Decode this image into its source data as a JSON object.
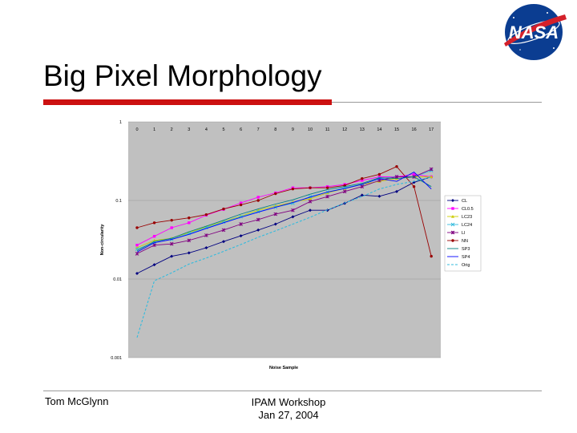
{
  "slide": {
    "title": "Big Pixel Morphology",
    "footer_left": "Tom McGlynn",
    "footer_center_line1": "IPAM Workshop",
    "footer_center_line2": "Jan 27, 2004",
    "logo_text": "NASA"
  },
  "chart_data": {
    "type": "line",
    "xlabel": "Noise Sample",
    "ylabel": "Non-circularity",
    "yscale": "log",
    "ylim": [
      0.001,
      1
    ],
    "yticks": [
      {
        "value": 1,
        "label": "1"
      },
      {
        "value": 0.1,
        "label": "0.1"
      },
      {
        "value": 0.01,
        "label": "0.01"
      },
      {
        "value": 0.001,
        "label": "0.001"
      }
    ],
    "categories": [
      "0",
      "1",
      "2",
      "3",
      "4",
      "5",
      "6",
      "7",
      "8",
      "9",
      "10",
      "11",
      "12",
      "13",
      "14",
      "15",
      "16",
      "17"
    ],
    "legend_position": "right",
    "series": [
      {
        "name": "CL",
        "color": "#000080",
        "marker": "diamond",
        "dash": false,
        "values": [
          0.0118,
          0.0152,
          0.0195,
          0.0215,
          0.025,
          0.03,
          0.0355,
          0.042,
          0.05,
          0.062,
          0.075,
          0.075,
          0.092,
          0.117,
          0.113,
          0.13,
          0.17,
          0.2
        ]
      },
      {
        "name": "CL0.5",
        "color": "#ff00ff",
        "marker": "square",
        "dash": false,
        "values": [
          0.027,
          0.035,
          0.045,
          0.052,
          0.065,
          0.077,
          0.093,
          0.11,
          0.125,
          0.145,
          0.145,
          0.15,
          0.16,
          0.18,
          0.2,
          0.2,
          0.215,
          0.2
        ]
      },
      {
        "name": "LC23",
        "color": "#cccc00",
        "marker": "triangle",
        "dash": false,
        "values": [
          0.025,
          0.031,
          0.033,
          0.039,
          0.046,
          0.054,
          0.063,
          0.075,
          0.085,
          0.095,
          0.105,
          0.125,
          0.142,
          0.16,
          0.175,
          0.19,
          0.2,
          0.2
        ]
      },
      {
        "name": "LC24",
        "color": "#33bbdd",
        "marker": "x",
        "dash": false,
        "values": [
          0.024,
          0.029,
          0.032,
          0.038,
          0.045,
          0.053,
          0.062,
          0.072,
          0.082,
          0.092,
          0.112,
          0.128,
          0.145,
          0.16,
          0.19,
          0.2,
          0.2,
          0.24
        ]
      },
      {
        "name": "LI",
        "color": "#800080",
        "marker": "star",
        "dash": false,
        "values": [
          0.021,
          0.027,
          0.028,
          0.031,
          0.036,
          0.042,
          0.05,
          0.057,
          0.067,
          0.075,
          0.097,
          0.112,
          0.13,
          0.15,
          0.18,
          0.2,
          0.2,
          0.25
        ]
      },
      {
        "name": "NN",
        "color": "#990000",
        "marker": "circle",
        "dash": false,
        "values": [
          0.045,
          0.052,
          0.056,
          0.06,
          0.066,
          0.078,
          0.088,
          0.1,
          0.122,
          0.14,
          0.145,
          0.145,
          0.155,
          0.19,
          0.215,
          0.27,
          0.15,
          0.0195
        ]
      },
      {
        "name": "SP3",
        "color": "#008080",
        "marker": "none",
        "dash": false,
        "values": [
          0.023,
          0.03,
          0.033,
          0.04,
          0.047,
          0.056,
          0.067,
          0.078,
          0.09,
          0.102,
          0.12,
          0.138,
          0.15,
          0.165,
          0.195,
          0.19,
          0.2,
          0.15
        ]
      },
      {
        "name": "SP4",
        "color": "#0000ff",
        "marker": "none",
        "dash": false,
        "values": [
          0.022,
          0.029,
          0.032,
          0.037,
          0.044,
          0.052,
          0.061,
          0.071,
          0.082,
          0.094,
          0.11,
          0.128,
          0.142,
          0.16,
          0.19,
          0.175,
          0.23,
          0.14
        ]
      },
      {
        "name": "Orig",
        "color": "#33bbdd",
        "marker": "none",
        "dash": true,
        "values": [
          0.0018,
          0.0095,
          0.012,
          0.0155,
          0.0185,
          0.0225,
          0.0275,
          0.034,
          0.041,
          0.05,
          0.061,
          0.076,
          0.093,
          0.112,
          0.14,
          0.16,
          0.175,
          0.2
        ]
      }
    ]
  }
}
